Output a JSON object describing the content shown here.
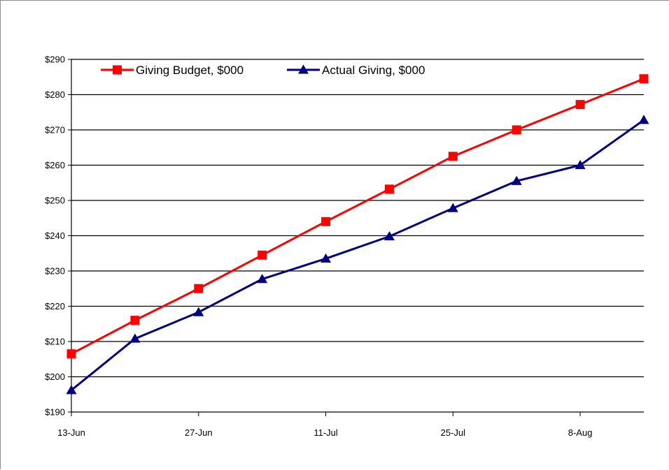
{
  "chart_data": {
    "type": "line",
    "title": "",
    "xlabel": "",
    "ylabel": "",
    "x_tick_labels": [
      "13-Jun",
      "27-Jun",
      "11-Jul",
      "25-Jul",
      "8-Aug"
    ],
    "x_tick_indices": [
      0,
      2,
      4,
      6,
      8
    ],
    "num_points": 10,
    "y_tick_labels": [
      "$190",
      "$200",
      "$210",
      "$220",
      "$230",
      "$240",
      "$250",
      "$260",
      "$270",
      "$280",
      "$290"
    ],
    "ylim": [
      190,
      290
    ],
    "y_step": 10,
    "grid": true,
    "legend_position": "top-left",
    "series": [
      {
        "name": "Giving Budget, $000",
        "color": "#ff0000",
        "marker": "square",
        "values": [
          206.5,
          216,
          225,
          234.5,
          244,
          253.2,
          262.5,
          270,
          277.2,
          284.5
        ]
      },
      {
        "name": "Actual Giving, $000",
        "color": "#000080",
        "marker": "triangle",
        "values": [
          196.2,
          210.8,
          218.3,
          227.7,
          233.5,
          239.8,
          247.8,
          255.5,
          260,
          272.8
        ]
      }
    ]
  }
}
